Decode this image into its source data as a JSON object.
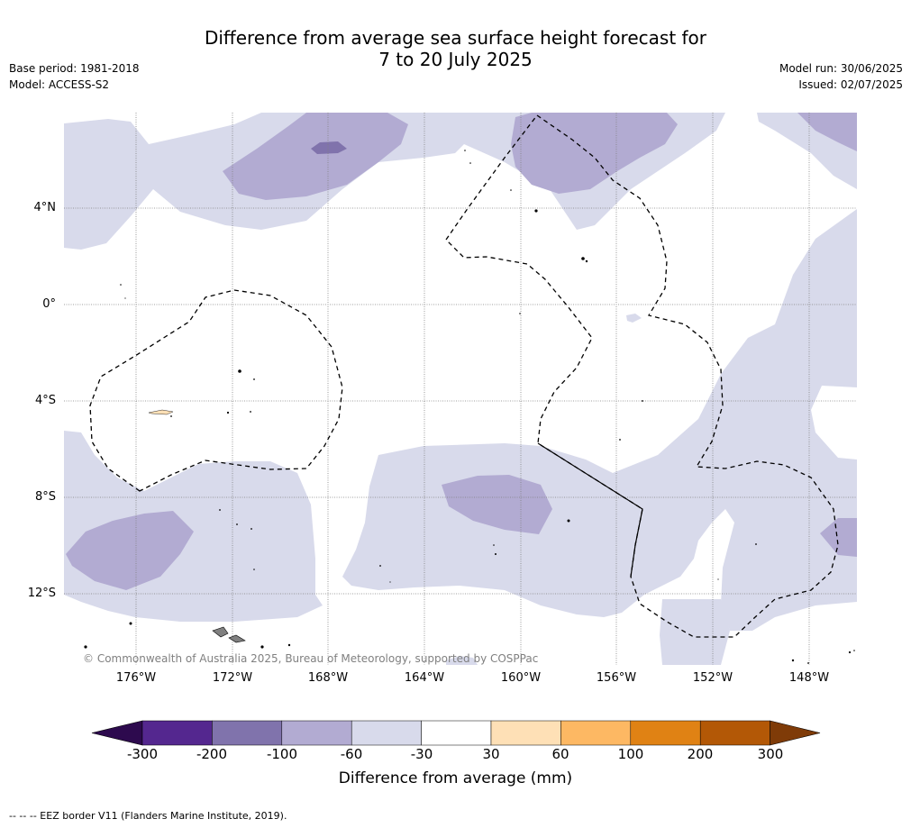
{
  "title_line1": "Difference from average sea surface height forecast for",
  "title_line2": "7 to 20 July 2025",
  "meta_left": {
    "base_period": "Base period: 1981-2018",
    "model": "Model: ACCESS-S2"
  },
  "meta_right": {
    "model_run": "Model run: 30/06/2025",
    "issued": "Issued: 02/07/2025"
  },
  "lat_labels": [
    "4°N",
    "0°",
    "4°S",
    "8°S",
    "12°S"
  ],
  "lon_labels": [
    "176°W",
    "172°W",
    "168°W",
    "164°W",
    "160°W",
    "156°W",
    "152°W",
    "148°W"
  ],
  "copyright": "© Commonwealth of Australia 2025, Bureau of Meteorology, supported by COSPPac",
  "colorbar": {
    "title": "Difference from average (mm)",
    "ticks": [
      "-300",
      "-200",
      "-100",
      "-60",
      "-30",
      "30",
      "60",
      "100",
      "200",
      "300"
    ],
    "colors": [
      "#2d0a4e",
      "#54278f",
      "#8073ac",
      "#b2abd2",
      "#d8daeb",
      "#ffffff",
      "#fee0b6",
      "#fdb863",
      "#e08214",
      "#b35806",
      "#7f3b08"
    ]
  },
  "footnote": "-- -- -- EEZ border V11 (Flanders Marine Institute, 2019).",
  "map": {
    "fill_colors": {
      "light_purple": "#d8daeb",
      "mid_purple": "#b2abd2",
      "dark_purple": "#8073ac",
      "land_tan": "#fee0b6"
    }
  }
}
